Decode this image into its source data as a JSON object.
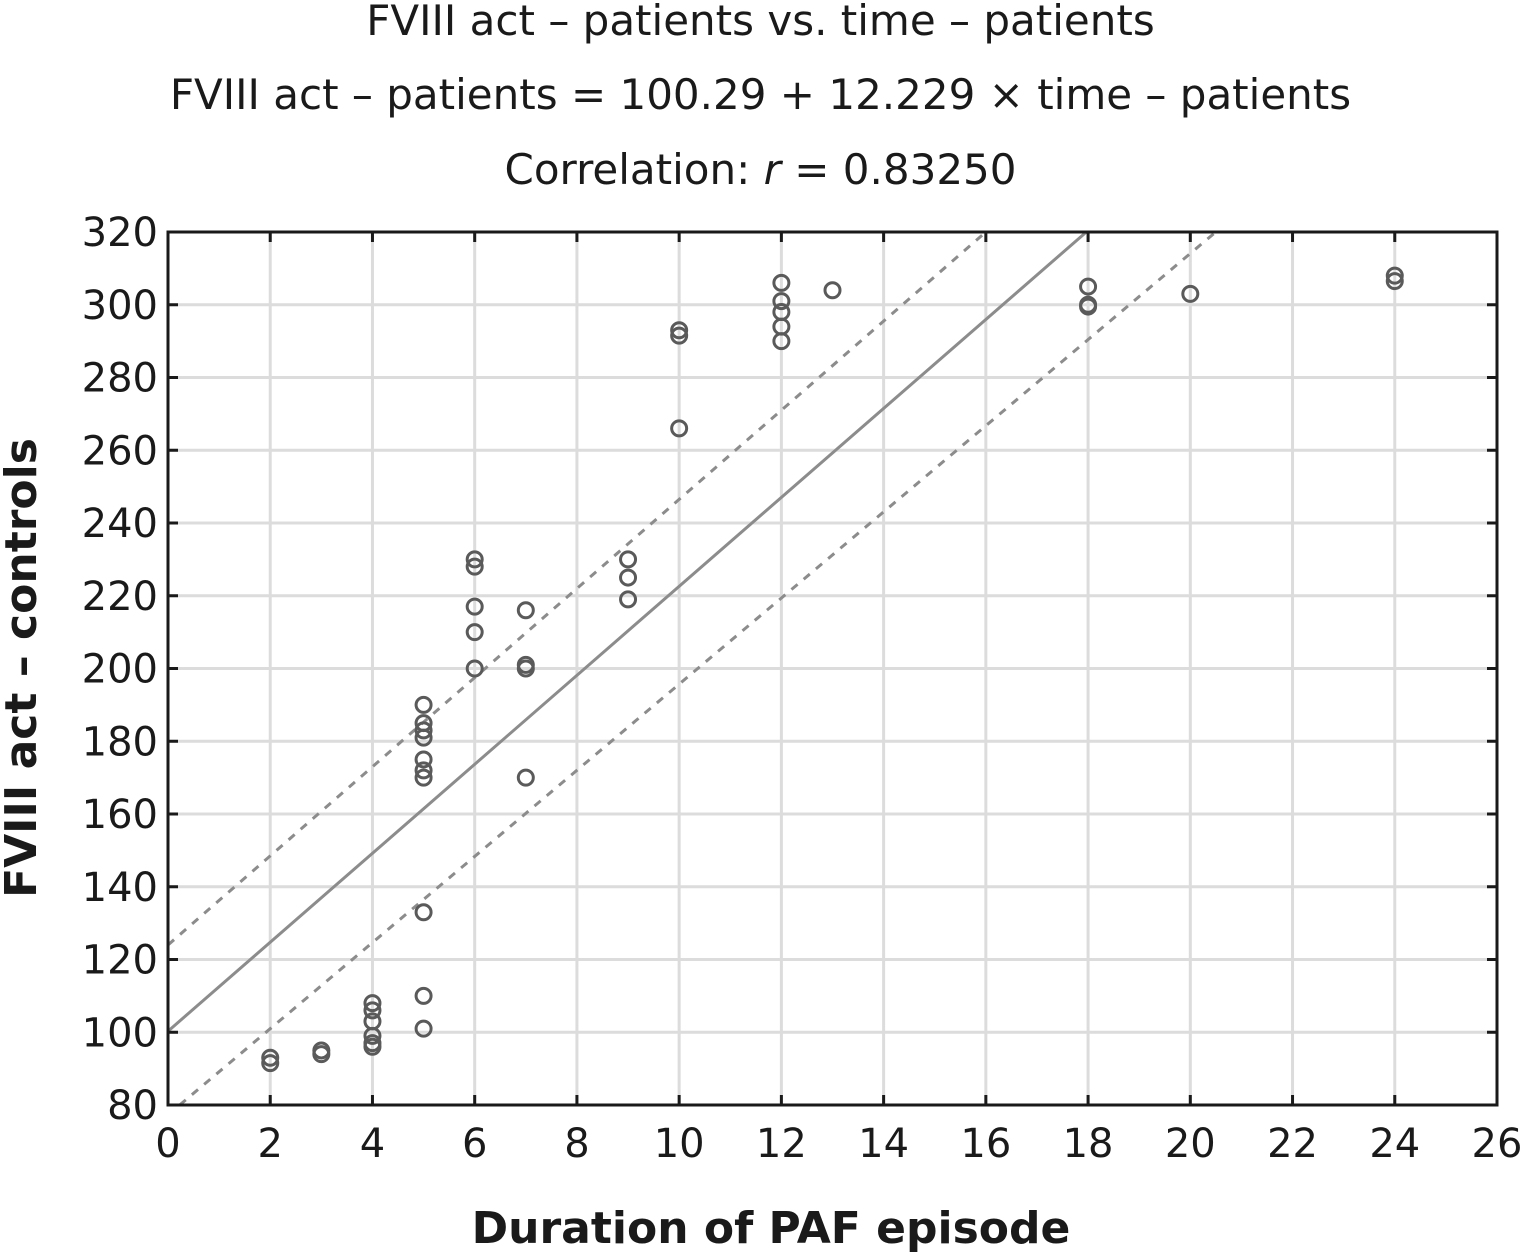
{
  "chart_data": {
    "type": "scatter",
    "title": "FVIII act – patients vs. time – patients",
    "subtitle": "FVIII act – patients = 100.29 + 12.229 × time – patients",
    "correlation_prefix": "Correlation: ",
    "correlation_var": "r",
    "correlation_suffix": " = 0.83250",
    "xlabel": "Duration of PAF episode",
    "ylabel": "FVIII act – controls",
    "xlim": [
      0,
      26
    ],
    "ylim": [
      80,
      320
    ],
    "xticks": [
      0,
      2,
      4,
      6,
      8,
      10,
      12,
      14,
      16,
      18,
      20,
      22,
      24,
      26
    ],
    "yticks": [
      80,
      100,
      120,
      140,
      160,
      180,
      200,
      220,
      240,
      260,
      280,
      300,
      320
    ],
    "grid": true,
    "regression": {
      "intercept": 100.29,
      "slope": 12.229
    },
    "band_upper": {
      "intercept": 124,
      "slope": 12.25
    },
    "band_lower": {
      "intercept": 77.3,
      "slope": 11.84
    },
    "points": [
      [
        2,
        93
      ],
      [
        2,
        91.5
      ],
      [
        3,
        95
      ],
      [
        3,
        94
      ],
      [
        4,
        108
      ],
      [
        4,
        106
      ],
      [
        4,
        103
      ],
      [
        4,
        99
      ],
      [
        4,
        97
      ],
      [
        4,
        96
      ],
      [
        5,
        190
      ],
      [
        5,
        185
      ],
      [
        5,
        183
      ],
      [
        5,
        181
      ],
      [
        5,
        175
      ],
      [
        5,
        172
      ],
      [
        5,
        170
      ],
      [
        5,
        133
      ],
      [
        5,
        110
      ],
      [
        5,
        101
      ],
      [
        6,
        230
      ],
      [
        6,
        228
      ],
      [
        6,
        217
      ],
      [
        6,
        210
      ],
      [
        6,
        200
      ],
      [
        7,
        216
      ],
      [
        7,
        201
      ],
      [
        7,
        200
      ],
      [
        7,
        170
      ],
      [
        9,
        230
      ],
      [
        9,
        225
      ],
      [
        9,
        219
      ],
      [
        10,
        293
      ],
      [
        10,
        291.5
      ],
      [
        10,
        266
      ],
      [
        12,
        306
      ],
      [
        12,
        301
      ],
      [
        12,
        298
      ],
      [
        12,
        294
      ],
      [
        12,
        290
      ],
      [
        13,
        304
      ],
      [
        18,
        305
      ],
      [
        18,
        300
      ],
      [
        18,
        299.5
      ],
      [
        20,
        303
      ],
      [
        24,
        308
      ],
      [
        24,
        306.5
      ]
    ],
    "colors": {
      "marker": "#5a5a5a",
      "line": "#8c8c8c",
      "grid": "#dcdcdc",
      "axis": "#1a1a1a"
    }
  }
}
